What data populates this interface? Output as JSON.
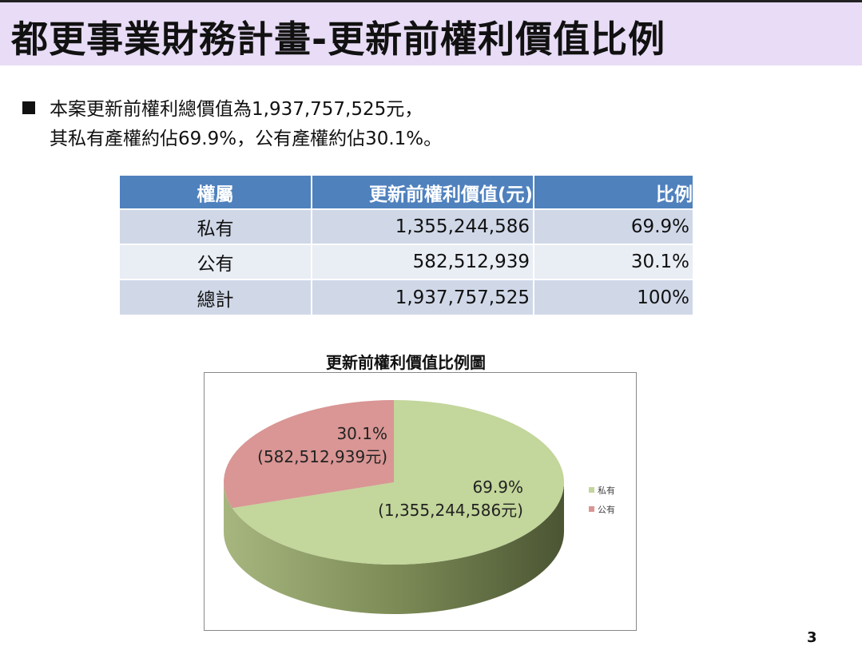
{
  "title": "都更事業財務計畫-更新前權利價值比例",
  "bullet": {
    "line1": "本案更新前權利總價值為1,937,757,525元，",
    "line2": "其私有產權約佔69.9%，公有產權約佔30.1%。"
  },
  "table": {
    "headers": [
      "權屬",
      "更新前權利價值(元)",
      "比例"
    ],
    "rows": [
      [
        "私有",
        "1,355,244,586",
        "69.9%"
      ],
      [
        "公有",
        "582,512,939",
        "30.1%"
      ],
      [
        "總計",
        "1,937,757,525",
        "100%"
      ]
    ]
  },
  "chart_data": {
    "type": "pie",
    "title": "更新前權利價值比例圖",
    "slices": [
      {
        "name": "私有",
        "value": 1355244586,
        "percent": 69.9,
        "label_pct": "69.9%",
        "label_val": "(1,355,244,586元)",
        "color": "#c3d69b"
      },
      {
        "name": "公有",
        "value": 582512939,
        "percent": 30.1,
        "label_pct": "30.1%",
        "label_val": "(582,512,939元)",
        "color": "#d99694"
      }
    ],
    "legend": "right"
  },
  "page_number": "3"
}
